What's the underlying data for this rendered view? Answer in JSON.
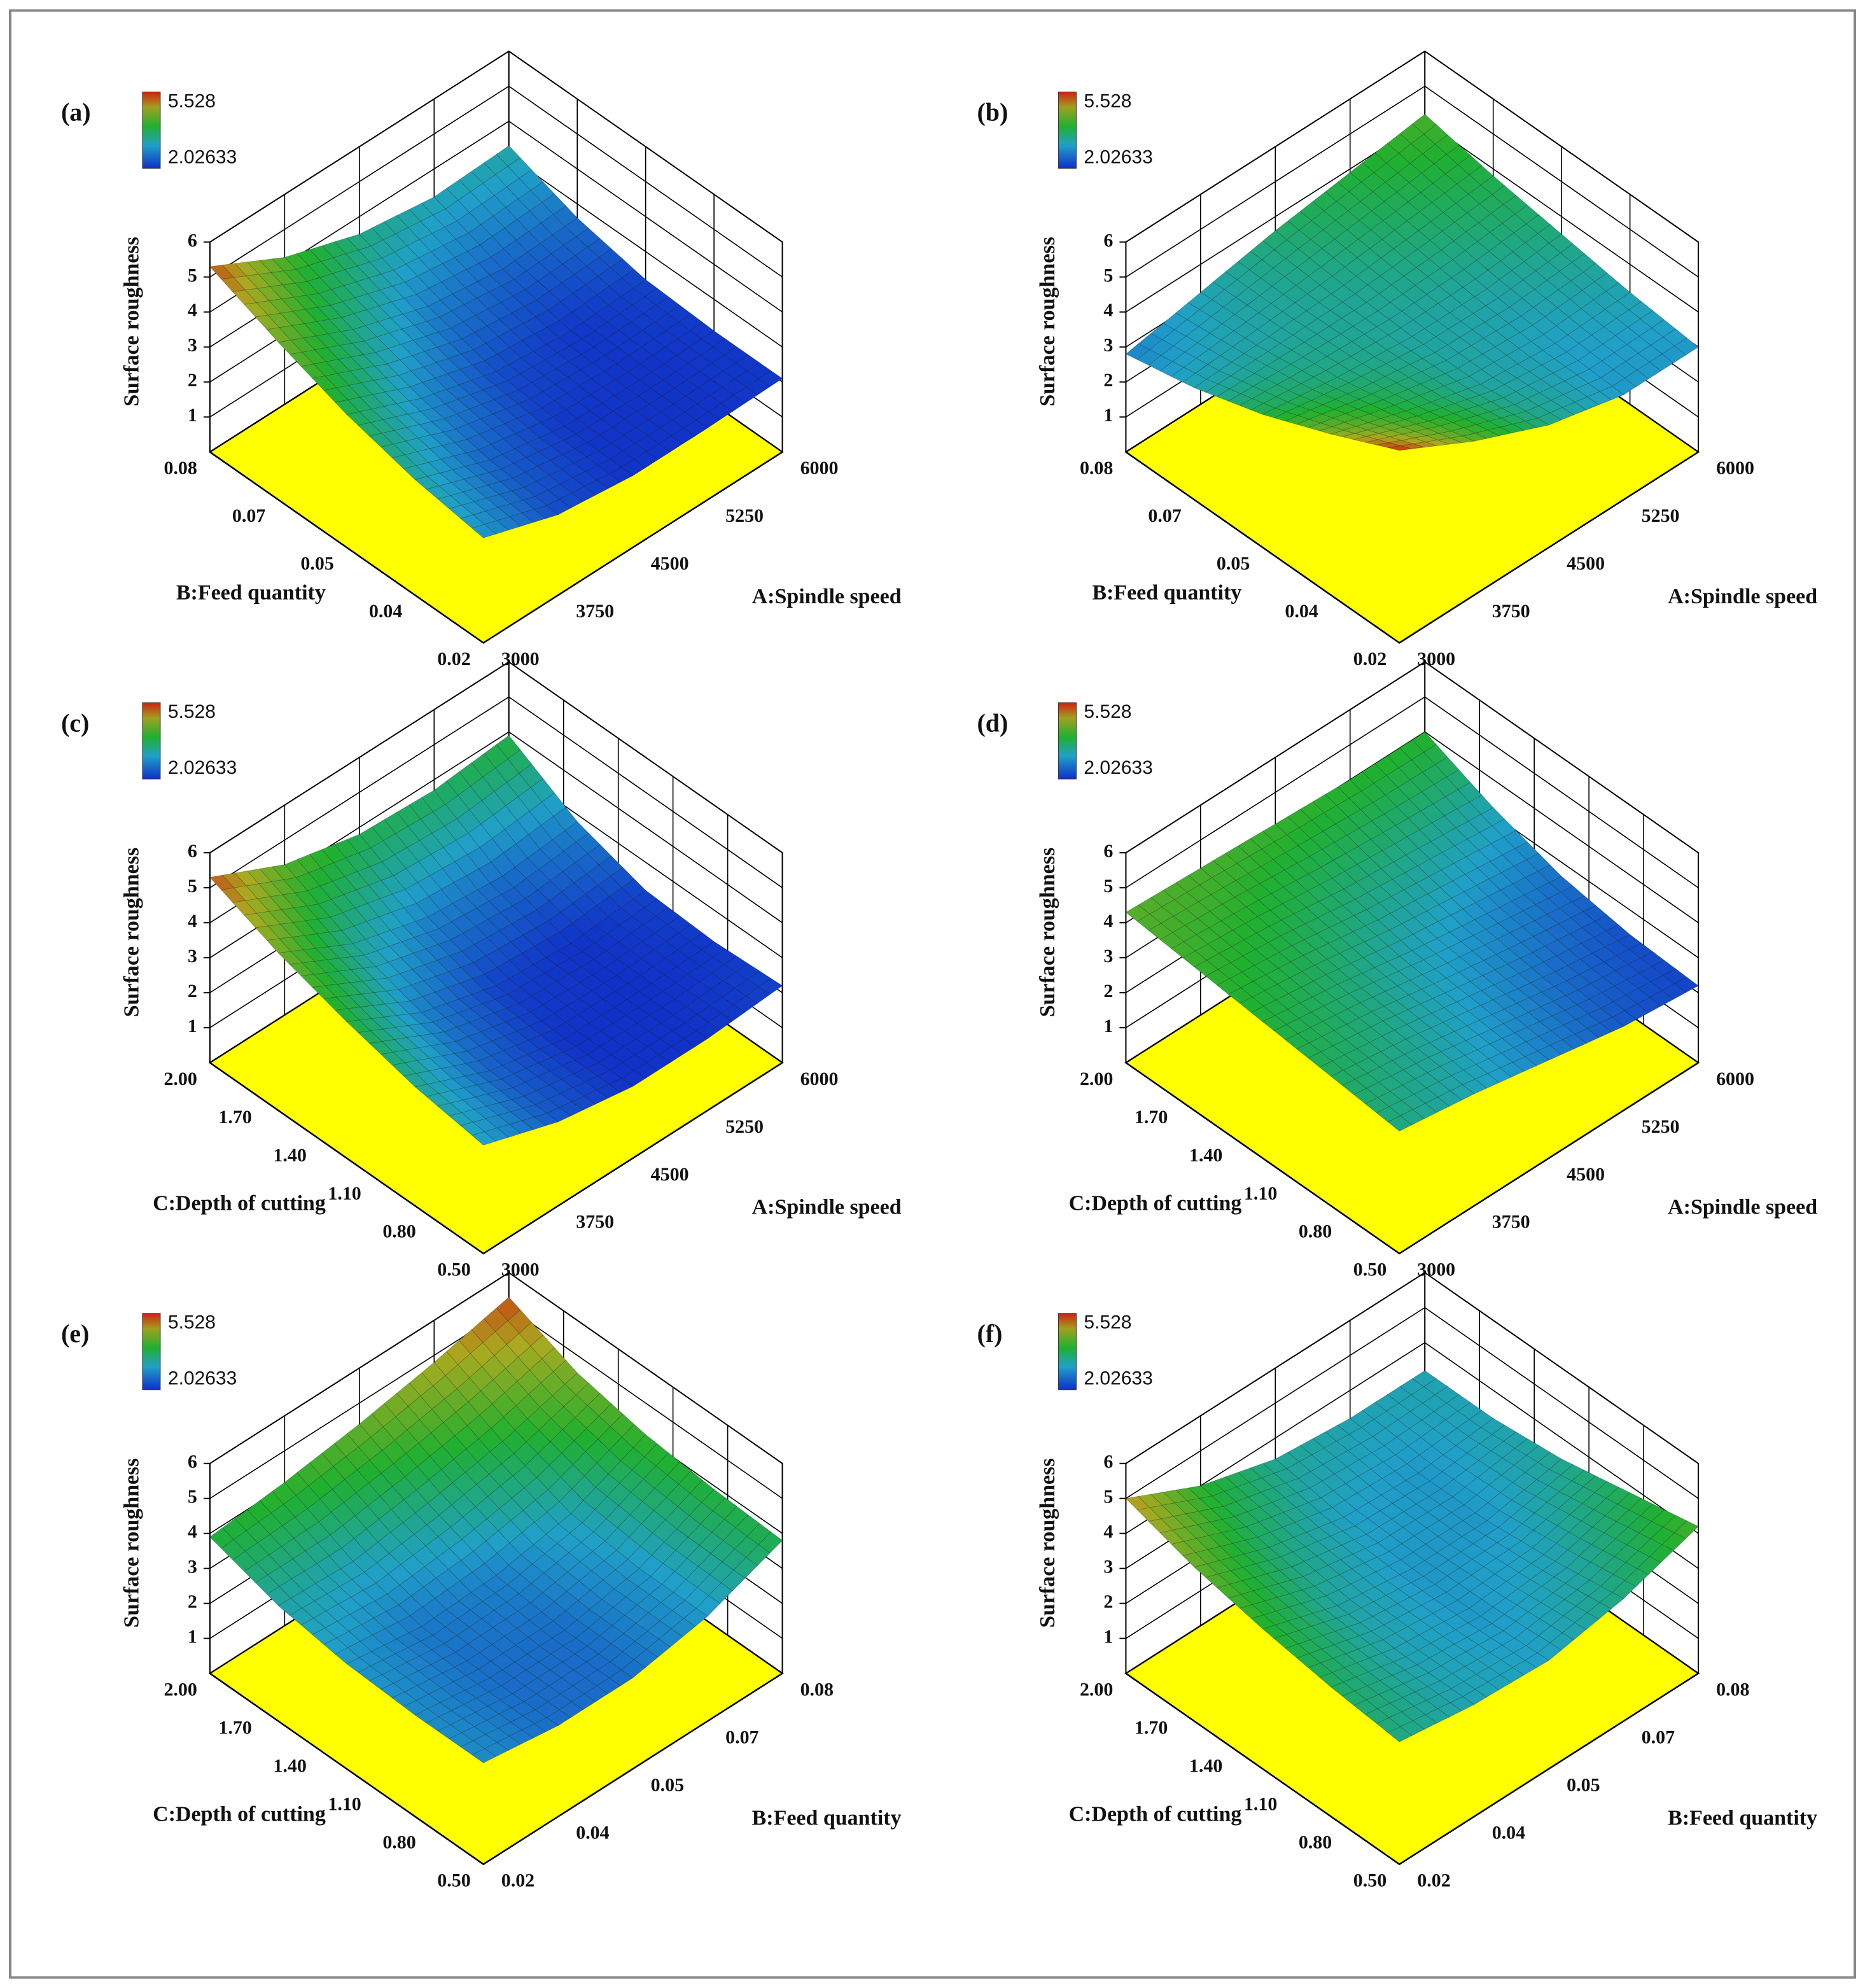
{
  "chart_data": [
    {
      "type": "surface",
      "label": "(a)",
      "z_label": "Surface roughness",
      "x_label": "A:Spindle speed",
      "y_label": "B:Feed quantity",
      "xlim": [
        3000,
        6000
      ],
      "xticks": [
        3000,
        3750,
        4500,
        5250,
        6000
      ],
      "ylim": [
        0.02,
        0.08
      ],
      "yticks": [
        0.02,
        {
          "value": 0.035,
          "label": "0.04"
        },
        0.05,
        {
          "value": 0.065,
          "label": "0.07"
        },
        0.08
      ],
      "zlim": [
        0,
        6
      ],
      "zticks": [
        1,
        2,
        3,
        4,
        5,
        6
      ],
      "color_max": 5.528,
      "color_min": 2.02633,
      "grid_x": [
        3000,
        3750,
        4500,
        5250,
        6000
      ],
      "grid_y": [
        0.02,
        0.035,
        0.05,
        0.065,
        0.08
      ],
      "z": [
        [
          3.0,
          2.3,
          2.05,
          2.05,
          2.1
        ],
        [
          3.3,
          2.5,
          2.1,
          2.05,
          2.1
        ],
        [
          3.8,
          2.9,
          2.3,
          2.1,
          2.2
        ],
        [
          4.5,
          3.5,
          2.8,
          2.5,
          2.6
        ],
        [
          5.3,
          4.2,
          3.5,
          3.2,
          3.3
        ]
      ]
    },
    {
      "type": "surface",
      "label": "(b)",
      "z_label": "Surface roughness",
      "x_label": "A:Spindle speed",
      "y_label": "B:Feed quantity",
      "xlim": [
        3000,
        6000
      ],
      "xticks": [
        3000,
        3750,
        4500,
        5250,
        6000
      ],
      "ylim": [
        0.02,
        0.08
      ],
      "yticks": [
        0.02,
        {
          "value": 0.035,
          "label": "0.04"
        },
        0.05,
        {
          "value": 0.065,
          "label": "0.07"
        },
        0.08
      ],
      "zlim": [
        0,
        6
      ],
      "zticks": [
        1,
        2,
        3,
        4,
        5,
        6
      ],
      "color_max": 5.528,
      "color_min": 2.02633,
      "grid_x": [
        3000,
        3750,
        4500,
        5250,
        6000
      ],
      "grid_y": [
        0.02,
        0.035,
        0.05,
        0.065,
        0.08
      ],
      "z": [
        [
          5.5,
          4.4,
          3.5,
          3.0,
          3.0
        ],
        [
          4.6,
          3.9,
          3.3,
          3.1,
          3.2
        ],
        [
          3.8,
          3.5,
          3.3,
          3.3,
          3.5
        ],
        [
          3.2,
          3.3,
          3.4,
          3.6,
          3.8
        ],
        [
          2.8,
          3.2,
          3.6,
          3.9,
          4.2
        ]
      ]
    },
    {
      "type": "surface",
      "label": "(c)",
      "z_label": "Surface roughness",
      "x_label": "A:Spindle speed",
      "y_label": "C:Depth of cutting",
      "xlim": [
        3000,
        6000
      ],
      "xticks": [
        3000,
        3750,
        4500,
        5250,
        6000
      ],
      "ylim": [
        0.5,
        2.0
      ],
      "yticks": [
        {
          "value": 0.5,
          "label": "0.50"
        },
        {
          "value": 0.8,
          "label": "0.80"
        },
        {
          "value": 1.1,
          "label": "1.10"
        },
        {
          "value": 1.4,
          "label": "1.40"
        },
        {
          "value": 1.7,
          "label": "1.70"
        },
        {
          "value": 2.0,
          "label": "2.00"
        }
      ],
      "zlim": [
        0,
        6
      ],
      "zticks": [
        1,
        2,
        3,
        4,
        5,
        6
      ],
      "color_max": 5.528,
      "color_min": 2.02633,
      "grid_x": [
        3000,
        3750,
        4500,
        5250,
        6000
      ],
      "grid_y": [
        0.5,
        0.875,
        1.25,
        1.625,
        2.0
      ],
      "z": [
        [
          3.1,
          2.4,
          2.05,
          2.05,
          2.2
        ],
        [
          3.4,
          2.5,
          2.05,
          2.03,
          2.1
        ],
        [
          3.9,
          2.8,
          2.2,
          2.05,
          2.2
        ],
        [
          4.5,
          3.4,
          2.8,
          2.6,
          2.8
        ],
        [
          5.3,
          4.3,
          3.8,
          3.7,
          3.9
        ]
      ]
    },
    {
      "type": "surface",
      "label": "(d)",
      "z_label": "Surface roughness",
      "x_label": "A:Spindle speed",
      "y_label": "C:Depth of cutting",
      "xlim": [
        3000,
        6000
      ],
      "xticks": [
        3000,
        3750,
        4500,
        5250,
        6000
      ],
      "ylim": [
        0.5,
        2.0
      ],
      "yticks": [
        {
          "value": 0.5,
          "label": "0.50"
        },
        {
          "value": 0.8,
          "label": "0.80"
        },
        {
          "value": 1.1,
          "label": "1.10"
        },
        {
          "value": 1.4,
          "label": "1.40"
        },
        {
          "value": 1.7,
          "label": "1.70"
        },
        {
          "value": 2.0,
          "label": "2.00"
        }
      ],
      "zlim": [
        0,
        6
      ],
      "zticks": [
        1,
        2,
        3,
        4,
        5,
        6
      ],
      "color_max": 5.528,
      "color_min": 2.02633,
      "grid_x": [
        3000,
        3750,
        4500,
        5250,
        6000
      ],
      "grid_y": [
        0.5,
        0.875,
        1.25,
        1.625,
        2.0
      ],
      "z": [
        [
          3.5,
          3.2,
          2.8,
          2.4,
          2.2
        ],
        [
          3.7,
          3.4,
          3.0,
          2.6,
          2.3
        ],
        [
          3.9,
          3.6,
          3.2,
          2.9,
          2.6
        ],
        [
          4.1,
          3.9,
          3.6,
          3.4,
          3.2
        ],
        [
          4.3,
          4.2,
          4.1,
          4.0,
          4.0
        ]
      ]
    },
    {
      "type": "surface",
      "label": "(e)",
      "z_label": "Surface roughness",
      "x_label": "B:Feed quantity",
      "y_label": "C:Depth of cutting",
      "xlim": [
        0.02,
        0.08
      ],
      "xticks": [
        0.02,
        {
          "value": 0.035,
          "label": "0.04"
        },
        0.05,
        {
          "value": 0.065,
          "label": "0.07"
        },
        0.08
      ],
      "ylim": [
        0.5,
        2.0
      ],
      "yticks": [
        {
          "value": 0.5,
          "label": "0.50"
        },
        {
          "value": 0.8,
          "label": "0.80"
        },
        {
          "value": 1.1,
          "label": "1.10"
        },
        {
          "value": 1.4,
          "label": "1.40"
        },
        {
          "value": 1.7,
          "label": "1.70"
        },
        {
          "value": 2.0,
          "label": "2.00"
        }
      ],
      "zlim": [
        0,
        6
      ],
      "zticks": [
        1,
        2,
        3,
        4,
        5,
        6
      ],
      "color_max": 5.528,
      "color_min": 2.02633,
      "grid_x": [
        0.02,
        0.035,
        0.05,
        0.065,
        0.08
      ],
      "grid_y": [
        0.5,
        0.875,
        1.25,
        1.625,
        2.0
      ],
      "z": [
        [
          2.9,
          2.6,
          2.6,
          3.0,
          3.8
        ],
        [
          2.9,
          2.6,
          2.6,
          3.0,
          3.9
        ],
        [
          3.0,
          2.7,
          2.8,
          3.2,
          4.1
        ],
        [
          3.3,
          3.2,
          3.5,
          3.9,
          4.5
        ],
        [
          3.9,
          4.1,
          4.4,
          4.8,
          5.3
        ]
      ]
    },
    {
      "type": "surface",
      "label": "(f)",
      "z_label": "Surface roughness",
      "x_label": "B:Feed quantity",
      "y_label": "C:Depth of cutting",
      "xlim": [
        0.02,
        0.08
      ],
      "xticks": [
        0.02,
        {
          "value": 0.035,
          "label": "0.04"
        },
        0.05,
        {
          "value": 0.065,
          "label": "0.07"
        },
        0.08
      ],
      "ylim": [
        0.5,
        2.0
      ],
      "yticks": [
        {
          "value": 0.5,
          "label": "0.50"
        },
        {
          "value": 0.8,
          "label": "0.80"
        },
        {
          "value": 1.1,
          "label": "1.10"
        },
        {
          "value": 1.4,
          "label": "1.40"
        },
        {
          "value": 1.7,
          "label": "1.70"
        },
        {
          "value": 2.0,
          "label": "2.00"
        }
      ],
      "zlim": [
        0,
        6
      ],
      "zticks": [
        1,
        2,
        3,
        4,
        5,
        6
      ],
      "color_max": 5.528,
      "color_min": 2.02633,
      "grid_x": [
        0.02,
        0.035,
        0.05,
        0.065,
        0.08
      ],
      "grid_y": [
        0.5,
        0.875,
        1.25,
        1.625,
        2.0
      ],
      "z": [
        [
          3.5,
          3.2,
          3.1,
          3.5,
          4.2
        ],
        [
          3.7,
          3.2,
          3.0,
          3.2,
          3.8
        ],
        [
          4.0,
          3.3,
          3.0,
          3.0,
          3.4
        ],
        [
          4.4,
          3.6,
          3.1,
          3.0,
          3.2
        ],
        [
          5.0,
          4.0,
          3.4,
          3.2,
          3.2
        ]
      ]
    }
  ]
}
